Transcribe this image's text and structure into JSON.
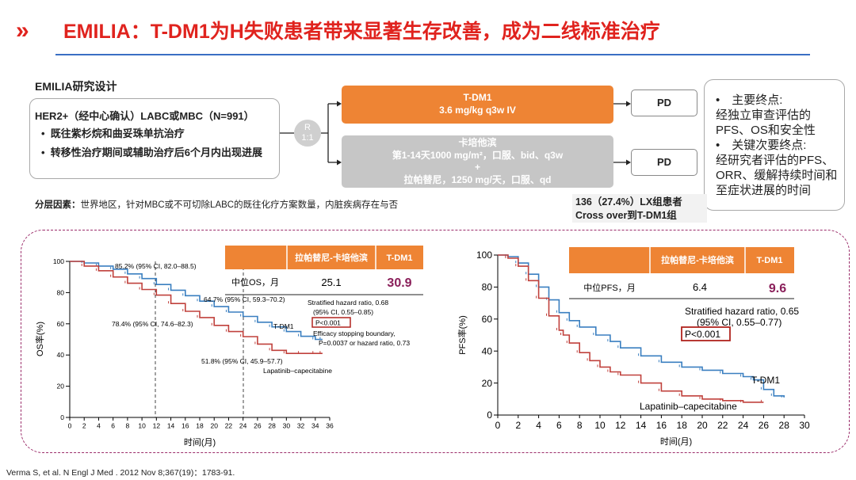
{
  "header": {
    "title": "EMILIA：T-DM1为H失败患者带来显著生存改善，成为二线标准治疗",
    "chevron": "»"
  },
  "design": {
    "heading": "EMILIA研究设计",
    "population": "HER2+（经中心确认）LABC或MBC（N=991）",
    "inclusion": [
      "既往紫杉烷和曲妥珠单抗治疗",
      "转移性治疗期间或辅助治疗后6个月内出现进展"
    ],
    "randomization": [
      "R",
      "1:1"
    ],
    "arm_tdm1": [
      "T-DM1",
      "3.6 mg/kg q3w IV"
    ],
    "arm_lap": [
      "卡培他滨",
      "第1-14天1000 mg/m²，口服、bid、q3w",
      "+",
      "拉帕替尼，1250 mg/天，口服、qd"
    ],
    "pd_label": "PD",
    "endpoints": [
      "•　主要终点:",
      "经独立审查评估的PFS、OS和安全性",
      "•　关键次要终点:",
      "经研究者评估的PFS、ORR、缓解持续时间和至症状进展的时间"
    ],
    "strat_label": "分层因素：",
    "strat_text": "世界地区，针对MBC或不可切除LABC的既往化疗方案数量，内脏疾病存在与否",
    "crossover": [
      "136（27.4%）LX组患者",
      "Cross over到T-DM1组"
    ]
  },
  "citation": "Verma S, et al. N Engl J Med . 2012 Nov 8;367(19)：1783-91.",
  "colors": {
    "accent_red": "#e0231e",
    "orange": "#ee8434",
    "tdm1_line": "#3a7fc0",
    "lap_line": "#c0413c",
    "frame": "#9b2c6a"
  },
  "chart_data": [
    {
      "type": "line",
      "title": "OS",
      "ylabel": "OS率(%)",
      "xlabel": "时间(月)",
      "x_ticks": [
        0,
        2,
        4,
        6,
        8,
        10,
        12,
        14,
        16,
        18,
        20,
        22,
        24,
        26,
        28,
        30,
        32,
        34,
        36
      ],
      "y_ticks": [
        0,
        20,
        40,
        60,
        80,
        100
      ],
      "xlim": [
        0,
        36
      ],
      "ylim": [
        0,
        100
      ],
      "table": {
        "headers": [
          "",
          "拉帕替尼-卡培他滨",
          "T-DM1"
        ],
        "row_label": "中位OS，月",
        "lap": "25.1",
        "tdm1": "30.9"
      },
      "series": [
        {
          "name": "T-DM1",
          "x": [
            0,
            2,
            4,
            6,
            8,
            10,
            12,
            14,
            16,
            18,
            20,
            22,
            24,
            26,
            28,
            30,
            32,
            34,
            35
          ],
          "y": [
            100,
            99,
            97,
            95,
            92,
            89,
            85.2,
            81.5,
            78,
            74.5,
            71,
            67.5,
            64.7,
            61,
            58,
            55,
            52,
            50,
            50
          ]
        },
        {
          "name": "Lapatinib–capecitabine",
          "x": [
            0,
            2,
            4,
            6,
            8,
            10,
            12,
            14,
            16,
            18,
            20,
            22,
            24,
            26,
            28,
            30,
            32,
            34,
            35
          ],
          "y": [
            100,
            97,
            94,
            90,
            86,
            82,
            78.4,
            73,
            68,
            64,
            59,
            55,
            51.8,
            47,
            43,
            41,
            41,
            41,
            41
          ]
        }
      ],
      "annotations": {
        "tdm1_12": "85.2% (95% CI, 82.0–88.5)",
        "tdm1_24": "64.7% (95% CI, 59.3–70.2)",
        "lap_12": "78.4% (95% CI, 74.6–82.3)",
        "lap_24": "51.8% (95% CI, 45.9–57.7)",
        "hr": "Stratified hazard ratio, 0.68",
        "hr_ci": "(95% CI, 0.55–0.85)",
        "p": "P<0.001",
        "eff1": "Efficacy stopping boundary,",
        "eff2": "P=0.0037 or hazard ratio, 0.73",
        "tdm1_label": "T-DM1",
        "lap_label": "Lapatinib–capecitabine"
      }
    },
    {
      "type": "line",
      "title": "PFS",
      "ylabel": "PFS率(%)",
      "xlabel": "时间(月)",
      "x_ticks": [
        0,
        2,
        4,
        6,
        8,
        10,
        12,
        14,
        16,
        18,
        20,
        22,
        24,
        26,
        28,
        30
      ],
      "y_ticks": [
        0,
        20,
        40,
        60,
        80,
        100
      ],
      "xlim": [
        0,
        30
      ],
      "ylim": [
        0,
        100
      ],
      "table": {
        "headers": [
          "",
          "拉帕替尼-卡培他滨",
          "T-DM1"
        ],
        "row_label": "中位PFS，月",
        "lap": "6.4",
        "tdm1": "9.6"
      },
      "series": [
        {
          "name": "T-DM1",
          "x": [
            0,
            1,
            2,
            3,
            4,
            5,
            6,
            7,
            8,
            9.6,
            11,
            12,
            14,
            16,
            18,
            20,
            22,
            24,
            25,
            26,
            27,
            28
          ],
          "y": [
            100,
            99,
            95,
            88,
            80,
            72,
            64,
            59,
            55,
            50,
            46,
            42,
            37,
            33,
            30,
            28,
            26,
            24,
            22,
            16,
            12,
            11
          ]
        },
        {
          "name": "Lapatinib–capecitabine",
          "x": [
            0,
            1,
            2,
            3,
            4,
            5,
            6,
            6.4,
            7,
            8,
            9,
            10,
            11,
            12,
            14,
            16,
            18,
            20,
            22,
            24,
            26
          ],
          "y": [
            100,
            98,
            93,
            84,
            73,
            62,
            53,
            50,
            45,
            39,
            34,
            30,
            27,
            25,
            20,
            15,
            12,
            10,
            9,
            8,
            8
          ]
        }
      ],
      "annotations": {
        "hr": "Stratified hazard ratio, 0.65",
        "hr_ci": "(95% CI, 0.55–0.77)",
        "p": "P<0.001",
        "tdm1_label": "T-DM1",
        "lap_label": "Lapatinib–capecitabine"
      }
    }
  ]
}
